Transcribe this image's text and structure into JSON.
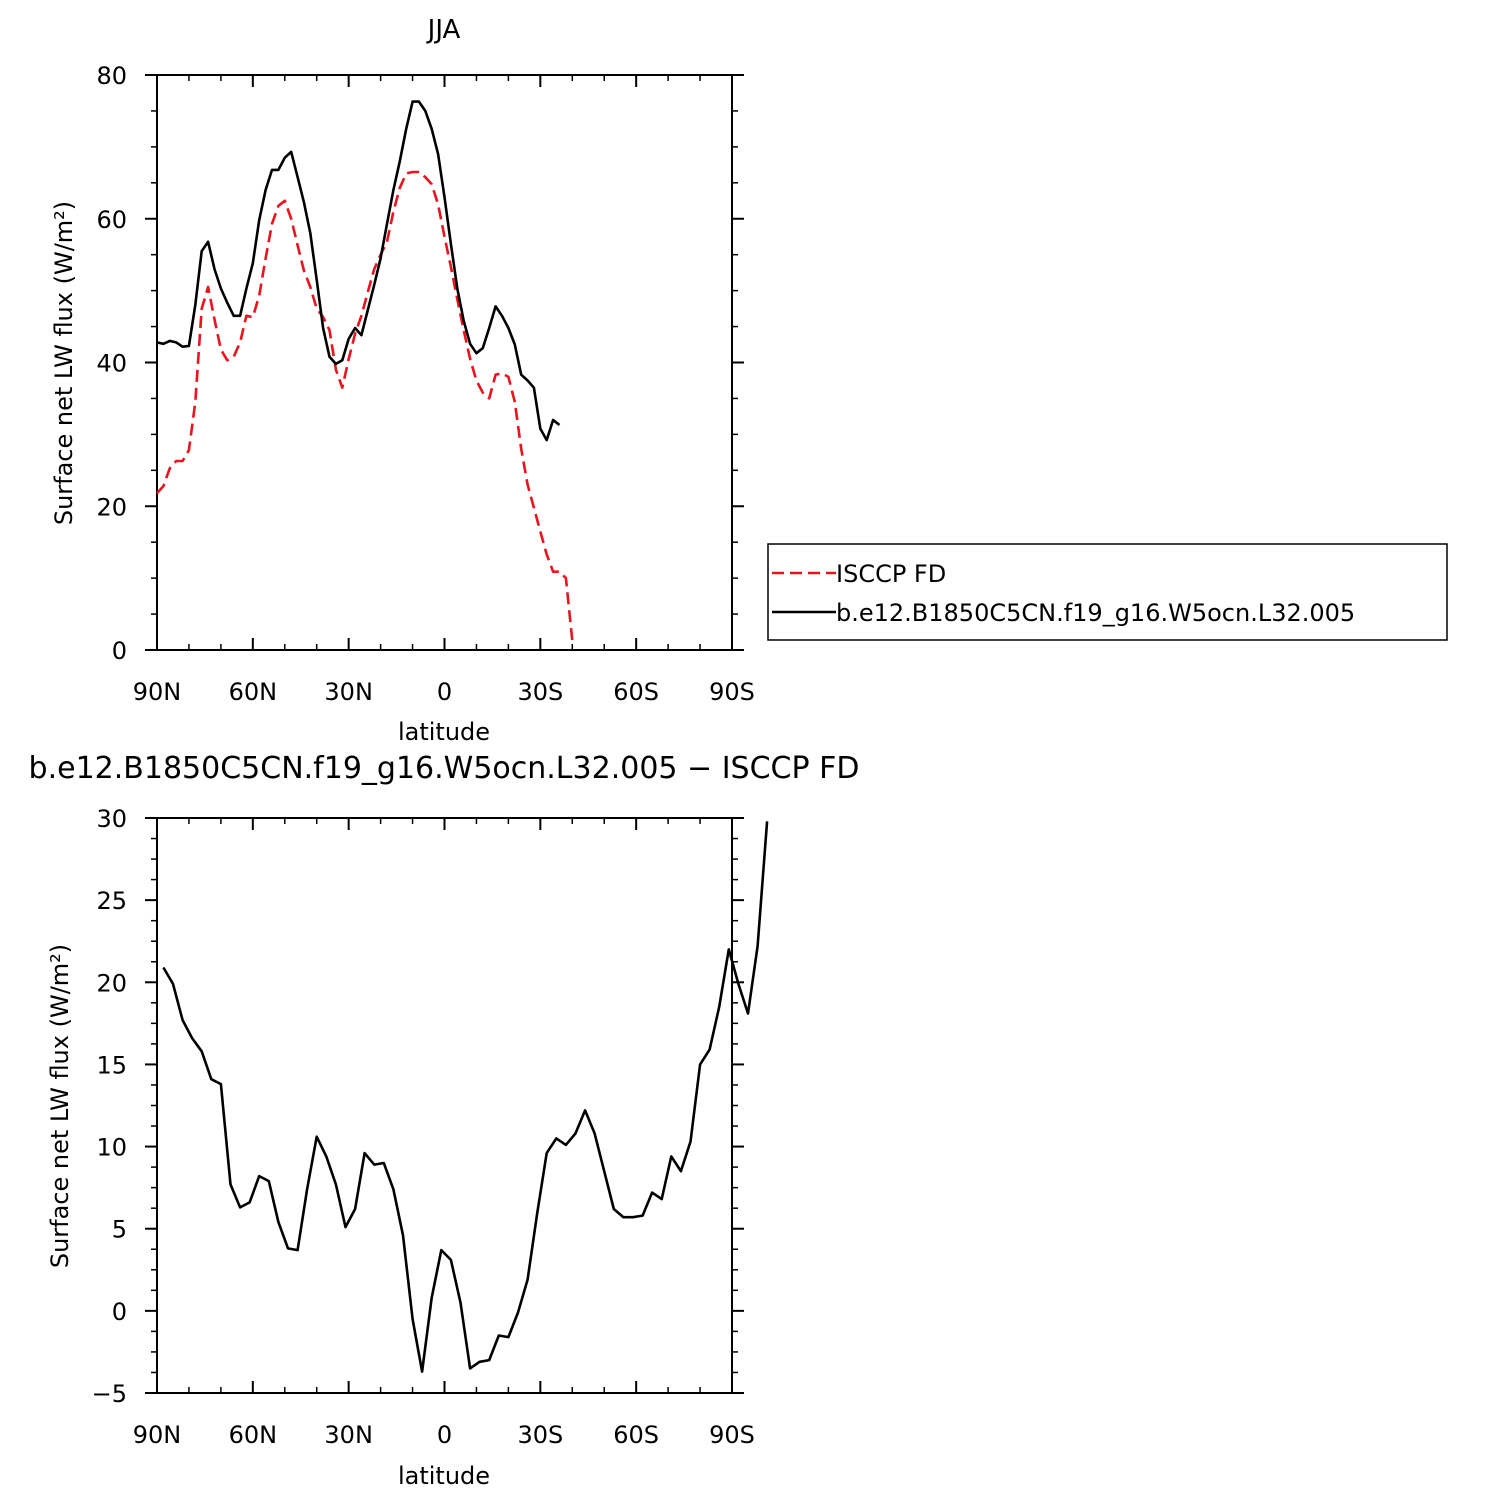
{
  "chart_data": [
    {
      "type": "line",
      "title": "JJA",
      "xlabel": "latitude",
      "ylabel": "Surface net LW flux (W/m²)",
      "xlim": [
        90,
        -90
      ],
      "ylim": [
        0,
        80
      ],
      "x_ticks": [
        {
          "value": 90,
          "label": "90N"
        },
        {
          "value": 60,
          "label": "60N"
        },
        {
          "value": 30,
          "label": "30N"
        },
        {
          "value": 0,
          "label": "0"
        },
        {
          "value": -30,
          "label": "30S"
        },
        {
          "value": -60,
          "label": "60S"
        },
        {
          "value": -90,
          "label": "90S"
        }
      ],
      "y_ticks": [
        {
          "value": 0,
          "label": "0"
        },
        {
          "value": 20,
          "label": "20"
        },
        {
          "value": 40,
          "label": "40"
        },
        {
          "value": 60,
          "label": "60"
        },
        {
          "value": 80,
          "label": "80"
        }
      ],
      "legend": "right",
      "series": [
        {
          "name": "ISCCP FD",
          "color": "#e8141e",
          "dash": "dashed",
          "points": [
            [
              90,
              21.8
            ],
            [
              88,
              22.8
            ],
            [
              86,
              25.3
            ],
            [
              84,
              26.3
            ],
            [
              82,
              26.3
            ],
            [
              80,
              27.8
            ],
            [
              78,
              34.5
            ],
            [
              76,
              47.5
            ],
            [
              74,
              50.5
            ],
            [
              72,
              46.0
            ],
            [
              70,
              41.8
            ],
            [
              68,
              40.3
            ],
            [
              66,
              40.8
            ],
            [
              64,
              42.8
            ],
            [
              62,
              46.5
            ],
            [
              60,
              46.3
            ],
            [
              58,
              49.3
            ],
            [
              56,
              54.5
            ],
            [
              54,
              59.3
            ],
            [
              52,
              61.8
            ],
            [
              50,
              62.5
            ],
            [
              48,
              60.0
            ],
            [
              46,
              56.3
            ],
            [
              44,
              52.8
            ],
            [
              42,
              50.5
            ],
            [
              40,
              47.5
            ],
            [
              38,
              46.3
            ],
            [
              36,
              44.5
            ],
            [
              34,
              39.0
            ],
            [
              32,
              36.5
            ],
            [
              30,
              40.5
            ],
            [
              28,
              44.0
            ],
            [
              26,
              46.5
            ],
            [
              24,
              49.8
            ],
            [
              22,
              53.0
            ],
            [
              20,
              55.0
            ],
            [
              18,
              56.8
            ],
            [
              16,
              61.0
            ],
            [
              14,
              64.3
            ],
            [
              12,
              66.3
            ],
            [
              10,
              66.5
            ],
            [
              8,
              66.5
            ],
            [
              6,
              65.8
            ],
            [
              4,
              64.8
            ],
            [
              2,
              62.0
            ],
            [
              0,
              57.5
            ],
            [
              -2,
              53.3
            ],
            [
              -4,
              48.8
            ],
            [
              -6,
              44.5
            ],
            [
              -8,
              40.5
            ],
            [
              -10,
              37.5
            ],
            [
              -12,
              35.8
            ],
            [
              -14,
              35.0
            ],
            [
              -16,
              38.3
            ],
            [
              -18,
              38.5
            ],
            [
              -20,
              38.0
            ],
            [
              -22,
              34.5
            ],
            [
              -24,
              28.0
            ],
            [
              -26,
              23.0
            ],
            [
              -28,
              19.8
            ],
            [
              -30,
              16.5
            ],
            [
              -32,
              13.3
            ],
            [
              -34,
              10.9
            ],
            [
              -36,
              10.9
            ],
            [
              -38,
              10.0
            ],
            [
              -40,
              1.3
            ]
          ]
        },
        {
          "name": "b.e12.B1850C5CN.f19_g16.W5ocn.L32.005",
          "color": "#000000",
          "dash": "solid",
          "points": [
            [
              90,
              42.8
            ],
            [
              88,
              42.6
            ],
            [
              86,
              43.0
            ],
            [
              84,
              42.8
            ],
            [
              82,
              42.2
            ],
            [
              80,
              42.3
            ],
            [
              78,
              48.0
            ],
            [
              76,
              55.5
            ],
            [
              74,
              56.8
            ],
            [
              72,
              53.0
            ],
            [
              70,
              50.3
            ],
            [
              68,
              48.3
            ],
            [
              66,
              46.5
            ],
            [
              64,
              46.5
            ],
            [
              62,
              50.3
            ],
            [
              60,
              53.8
            ],
            [
              58,
              59.8
            ],
            [
              56,
              64.0
            ],
            [
              54,
              66.8
            ],
            [
              52,
              66.8
            ],
            [
              50,
              68.5
            ],
            [
              48,
              69.3
            ],
            [
              46,
              65.8
            ],
            [
              44,
              62.3
            ],
            [
              42,
              58.0
            ],
            [
              40,
              51.5
            ],
            [
              38,
              44.8
            ],
            [
              36,
              40.8
            ],
            [
              34,
              39.8
            ],
            [
              32,
              40.3
            ],
            [
              30,
              43.3
            ],
            [
              28,
              44.8
            ],
            [
              26,
              43.8
            ],
            [
              24,
              47.3
            ],
            [
              22,
              50.8
            ],
            [
              20,
              54.5
            ],
            [
              18,
              59.3
            ],
            [
              16,
              64.0
            ],
            [
              14,
              68.0
            ],
            [
              12,
              72.5
            ],
            [
              10,
              76.3
            ],
            [
              8,
              76.3
            ],
            [
              6,
              75.0
            ],
            [
              4,
              72.5
            ],
            [
              2,
              69.0
            ],
            [
              0,
              63.0
            ],
            [
              -2,
              56.5
            ],
            [
              -4,
              50.3
            ],
            [
              -6,
              45.8
            ],
            [
              -8,
              42.6
            ],
            [
              -10,
              41.3
            ],
            [
              -12,
              42.0
            ],
            [
              -14,
              44.8
            ],
            [
              -16,
              47.8
            ],
            [
              -18,
              46.5
            ],
            [
              -20,
              44.8
            ],
            [
              -22,
              42.5
            ],
            [
              -24,
              38.3
            ],
            [
              -26,
              37.5
            ],
            [
              -28,
              36.5
            ],
            [
              -30,
              30.8
            ],
            [
              -32,
              29.2
            ],
            [
              -34,
              32.0
            ],
            [
              -36,
              31.3
            ]
          ]
        }
      ]
    },
    {
      "type": "line",
      "title": "b.e12.B1850C5CN.f19_g16.W5ocn.L32.005 − ISCCP FD",
      "xlabel": "latitude",
      "ylabel": "Surface net LW flux (W/m²)",
      "xlim": [
        90,
        -90
      ],
      "ylim": [
        -5,
        30
      ],
      "x_ticks": [
        {
          "value": 90,
          "label": "90N"
        },
        {
          "value": 60,
          "label": "60N"
        },
        {
          "value": 30,
          "label": "30N"
        },
        {
          "value": 0,
          "label": "0"
        },
        {
          "value": -30,
          "label": "30S"
        },
        {
          "value": -60,
          "label": "60S"
        },
        {
          "value": -90,
          "label": "90S"
        }
      ],
      "y_ticks": [
        {
          "value": -5,
          "label": "−5"
        },
        {
          "value": 0,
          "label": "0"
        },
        {
          "value": 5,
          "label": "5"
        },
        {
          "value": 10,
          "label": "10"
        },
        {
          "value": 15,
          "label": "15"
        },
        {
          "value": 20,
          "label": "20"
        },
        {
          "value": 25,
          "label": "25"
        },
        {
          "value": 30,
          "label": "30"
        }
      ],
      "series": [
        {
          "name": "",
          "color": "#000000",
          "dash": "solid",
          "points": [
            [
              88,
              20.9
            ],
            [
              85,
              19.9
            ],
            [
              82,
              17.7
            ],
            [
              79,
              16.6
            ],
            [
              76,
              15.8
            ],
            [
              73,
              14.1
            ],
            [
              70,
              13.8
            ],
            [
              67,
              7.7
            ],
            [
              64,
              6.3
            ],
            [
              61,
              6.6
            ],
            [
              58,
              8.2
            ],
            [
              55,
              7.9
            ],
            [
              52,
              5.4
            ],
            [
              49,
              3.8
            ],
            [
              46,
              3.7
            ],
            [
              43,
              7.4
            ],
            [
              40,
              10.6
            ],
            [
              37,
              9.4
            ],
            [
              34,
              7.7
            ],
            [
              31,
              5.1
            ],
            [
              28,
              6.2
            ],
            [
              25,
              9.6
            ],
            [
              22,
              8.9
            ],
            [
              19,
              9.0
            ],
            [
              16,
              7.4
            ],
            [
              13,
              4.6
            ],
            [
              10,
              -0.5
            ],
            [
              7,
              -3.7
            ],
            [
              4,
              0.8
            ],
            [
              1,
              3.7
            ],
            [
              -2,
              3.1
            ],
            [
              -5,
              0.5
            ],
            [
              -8,
              -3.5
            ],
            [
              -11,
              -3.1
            ],
            [
              -14,
              -3.0
            ],
            [
              -17,
              -1.5
            ],
            [
              -20,
              -1.6
            ],
            [
              -23,
              -0.1
            ],
            [
              -26,
              1.9
            ],
            [
              -29,
              5.9
            ],
            [
              -32,
              9.6
            ],
            [
              -35,
              10.5
            ],
            [
              -38,
              10.1
            ],
            [
              -41,
              10.8
            ],
            [
              -44,
              12.2
            ],
            [
              -47,
              10.8
            ],
            [
              -50,
              8.5
            ],
            [
              -53,
              6.2
            ],
            [
              -56,
              5.7
            ],
            [
              -59,
              5.7
            ],
            [
              -62,
              5.8
            ],
            [
              -65,
              7.2
            ],
            [
              -68,
              6.8
            ],
            [
              -71,
              9.4
            ],
            [
              -74,
              8.5
            ],
            [
              -77,
              10.3
            ],
            [
              -80,
              15.0
            ],
            [
              -83,
              15.9
            ],
            [
              -86,
              18.5
            ],
            [
              -89,
              22.0
            ],
            [
              -92,
              19.9
            ],
            [
              -95,
              18.1
            ],
            [
              -98,
              22.2
            ],
            [
              -101,
              29.8
            ]
          ]
        }
      ]
    }
  ]
}
